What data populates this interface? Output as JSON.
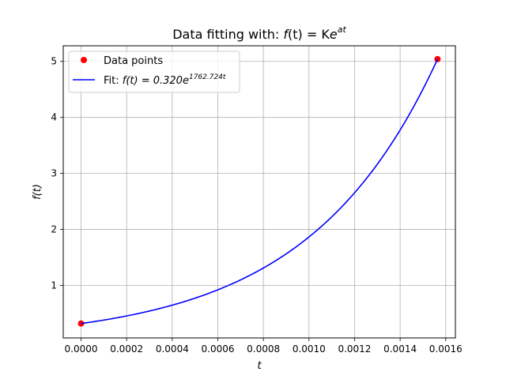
{
  "chart_data": {
    "type": "line",
    "title": {
      "prefix": "Data fitting with: ",
      "lhs": "f",
      "arg": "(t)",
      "eq": " = K",
      "base": "e",
      "exponent": "at"
    },
    "xlabel": "t",
    "ylabel": "f(t)",
    "xlim": [
      -7.82e-05,
      0.0016424
    ],
    "ylim": [
      0.0624,
      5.278
    ],
    "x_ticks": [
      0.0,
      0.0002,
      0.0004,
      0.0006,
      0.0008,
      0.001,
      0.0012,
      0.0014,
      0.0016
    ],
    "x_tick_labels": [
      "0.0000",
      "0.0002",
      "0.0004",
      "0.0006",
      "0.0008",
      "0.0010",
      "0.0012",
      "0.0014",
      "0.0016"
    ],
    "y_ticks": [
      1,
      2,
      3,
      4,
      5
    ],
    "y_tick_labels": [
      "1",
      "2",
      "3",
      "4",
      "5"
    ],
    "grid": true,
    "legend_position": "top-left",
    "series": [
      {
        "name": "Data points",
        "kind": "scatter",
        "color": "#ff0000",
        "x": [
          0.0,
          0.001564
        ],
        "y": [
          0.32,
          5.04
        ]
      },
      {
        "name_prefix": "Fit: ",
        "name_lhs": "f(t) = 0.320",
        "name_base": "e",
        "name_exponent": "1762.724t",
        "kind": "line",
        "color": "#0000ff",
        "K": 0.32,
        "a": 1762.724,
        "x_range": [
          0.0,
          0.001564
        ]
      }
    ]
  }
}
